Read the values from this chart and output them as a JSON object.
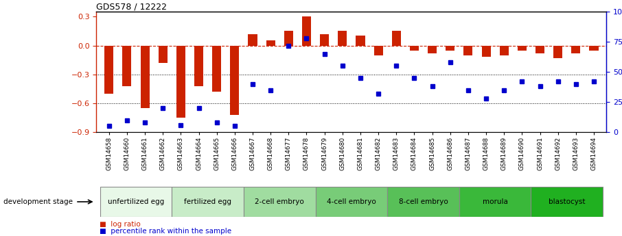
{
  "title": "GDS578 / 12222",
  "samples": [
    "GSM14658",
    "GSM14660",
    "GSM14661",
    "GSM14662",
    "GSM14663",
    "GSM14664",
    "GSM14665",
    "GSM14666",
    "GSM14667",
    "GSM14668",
    "GSM14677",
    "GSM14678",
    "GSM14679",
    "GSM14680",
    "GSM14681",
    "GSM14682",
    "GSM14683",
    "GSM14684",
    "GSM14685",
    "GSM14686",
    "GSM14687",
    "GSM14688",
    "GSM14689",
    "GSM14690",
    "GSM14691",
    "GSM14692",
    "GSM14693",
    "GSM14694"
  ],
  "log_ratio": [
    -0.5,
    -0.42,
    -0.65,
    -0.18,
    -0.75,
    -0.42,
    -0.48,
    -0.72,
    0.12,
    0.05,
    0.15,
    0.3,
    0.12,
    0.15,
    0.1,
    -0.1,
    0.15,
    -0.05,
    -0.08,
    -0.05,
    -0.1,
    -0.12,
    -0.1,
    -0.05,
    -0.08,
    -0.13,
    -0.08,
    -0.05
  ],
  "percentile": [
    5,
    10,
    8,
    20,
    6,
    20,
    8,
    5,
    40,
    35,
    72,
    78,
    65,
    55,
    45,
    32,
    55,
    45,
    38,
    58,
    35,
    28,
    35,
    42,
    38,
    42,
    40,
    42
  ],
  "stages": [
    {
      "label": "unfertilized egg",
      "start": 0,
      "end": 4,
      "color": "#e8f8e8"
    },
    {
      "label": "fertilized egg",
      "start": 4,
      "end": 8,
      "color": "#c8ecc8"
    },
    {
      "label": "2-cell embryo",
      "start": 8,
      "end": 12,
      "color": "#a0dca0"
    },
    {
      "label": "4-cell embryo",
      "start": 12,
      "end": 16,
      "color": "#78cc78"
    },
    {
      "label": "8-cell embryo",
      "start": 16,
      "end": 20,
      "color": "#58c058"
    },
    {
      "label": "morula",
      "start": 20,
      "end": 24,
      "color": "#3ab83a"
    },
    {
      "label": "blastocyst",
      "start": 24,
      "end": 28,
      "color": "#20b020"
    }
  ],
  "ylim_left": [
    -0.9,
    0.35
  ],
  "ylim_right": [
    0,
    100
  ],
  "bar_color": "#cc2200",
  "dot_color": "#0000cc",
  "dashed_color": "#cc2200",
  "grid_color": "#000000"
}
